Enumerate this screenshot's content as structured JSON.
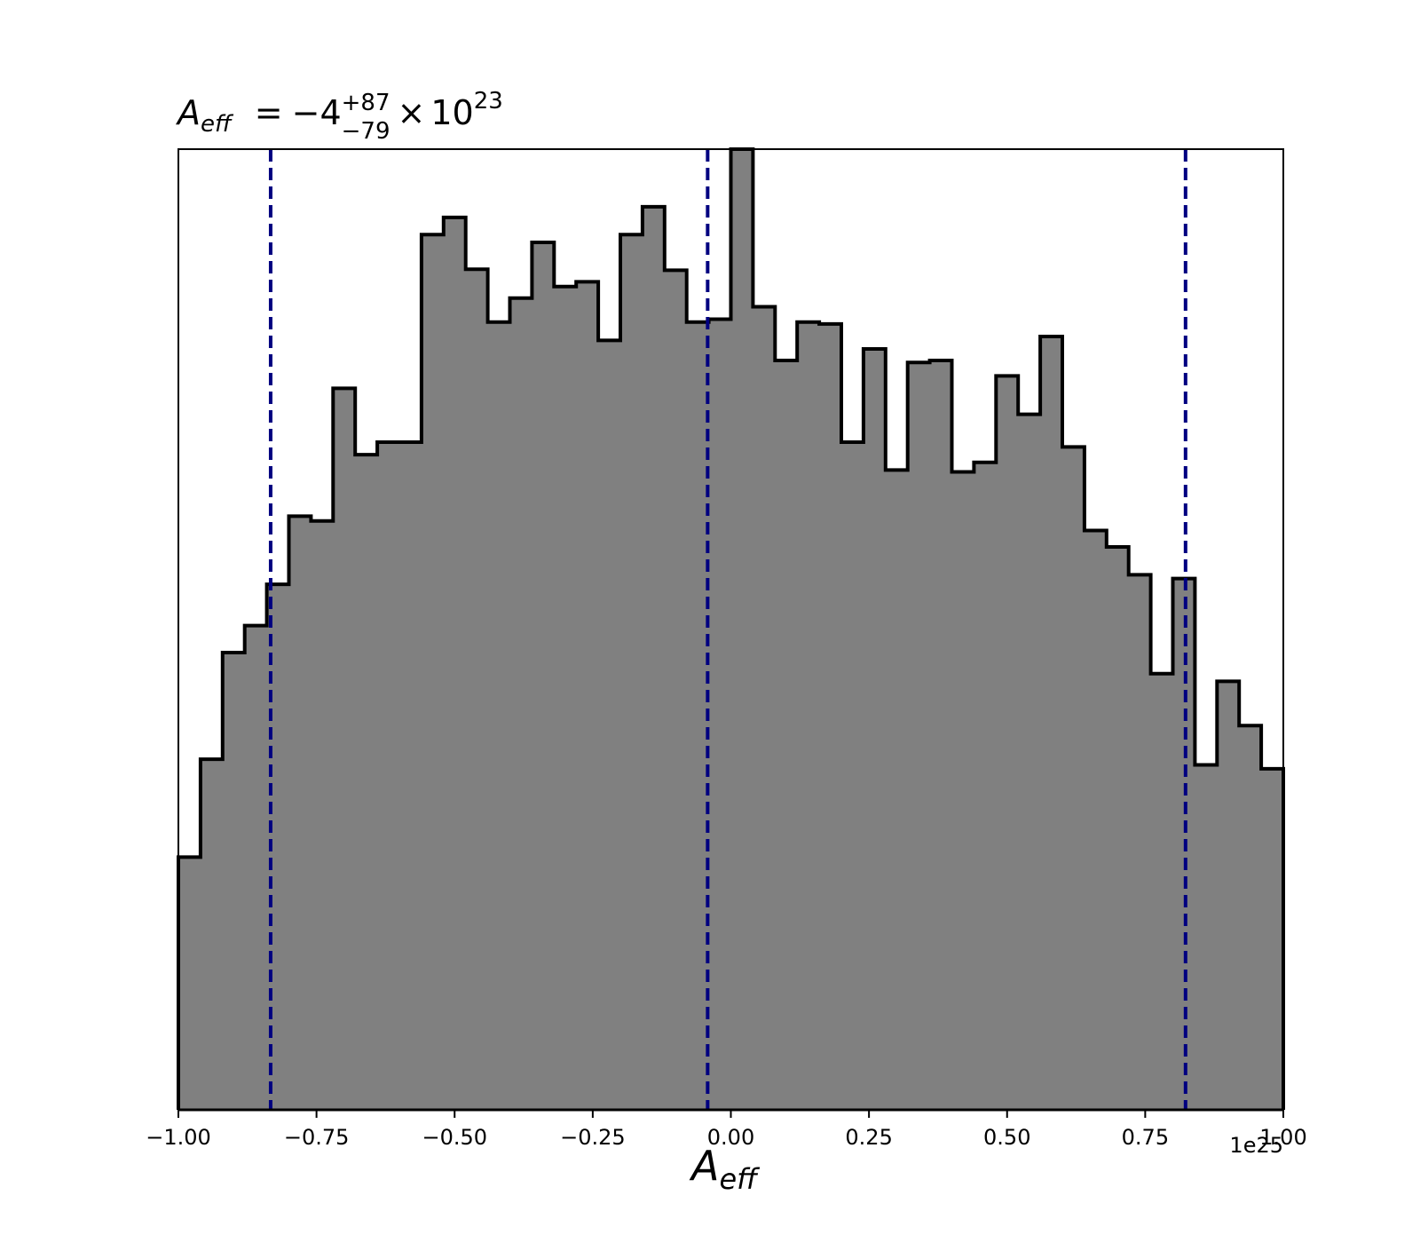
{
  "chart_data": {
    "type": "histogram",
    "title": {
      "symbol": "A",
      "subscript": "eff",
      "equals": "=",
      "value": "−4",
      "upper": "+87",
      "lower": "−79",
      "times": "×",
      "base": "10",
      "exponent": "23"
    },
    "xlabel": {
      "symbol": "A",
      "subscript": "eff"
    },
    "offset_label": "1e25",
    "xlim": [
      -1.0,
      1.0
    ],
    "ylim": [
      0,
      1.0
    ],
    "x_ticks": [
      -1.0,
      -0.75,
      -0.5,
      -0.25,
      0.0,
      0.25,
      0.5,
      0.75,
      1.0
    ],
    "x_tick_labels": [
      "−1.00",
      "−0.75",
      "−0.50",
      "−0.25",
      "0.00",
      "0.25",
      "0.50",
      "0.75",
      "1.00"
    ],
    "y_ticks_shown": false,
    "bin_edges": [
      -1.0,
      -0.96,
      -0.92,
      -0.88,
      -0.84,
      -0.8,
      -0.76,
      -0.72,
      -0.68,
      -0.64,
      -0.6,
      -0.56,
      -0.52,
      -0.48,
      -0.44,
      -0.4,
      -0.36,
      -0.32,
      -0.28,
      -0.24,
      -0.2,
      -0.16,
      -0.12,
      -0.08,
      -0.04,
      0.0,
      0.04,
      0.08,
      0.12,
      0.16,
      0.2,
      0.24,
      0.28,
      0.32,
      0.36,
      0.4,
      0.44,
      0.48,
      0.52,
      0.56,
      0.6,
      0.64,
      0.68,
      0.72,
      0.76,
      0.8,
      0.84,
      0.88,
      0.92,
      0.96,
      1.0
    ],
    "values": [
      0.263,
      0.365,
      0.476,
      0.504,
      0.547,
      0.618,
      0.613,
      0.751,
      0.682,
      0.695,
      0.695,
      0.911,
      0.929,
      0.875,
      0.82,
      0.845,
      0.903,
      0.857,
      0.862,
      0.801,
      0.911,
      0.94,
      0.874,
      0.82,
      0.823,
      1.0,
      0.836,
      0.78,
      0.82,
      0.818,
      0.695,
      0.792,
      0.666,
      0.778,
      0.78,
      0.664,
      0.674,
      0.764,
      0.724,
      0.805,
      0.69,
      0.603,
      0.586,
      0.557,
      0.454,
      0.553,
      0.359,
      0.446,
      0.4,
      0.355
    ],
    "quantile_lines": [
      -0.833,
      -0.042,
      0.823
    ],
    "fill_color": "#808080",
    "edge_color": "#000000",
    "line_color": "#000080",
    "grid": false
  }
}
